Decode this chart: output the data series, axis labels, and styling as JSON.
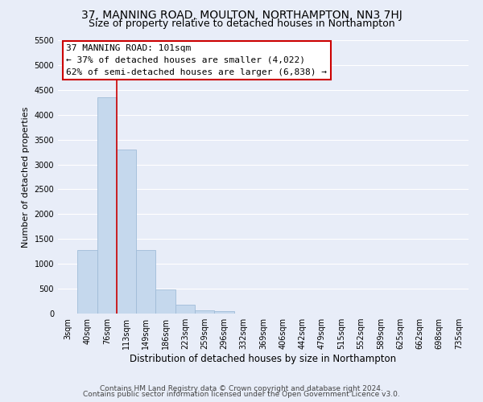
{
  "title": "37, MANNING ROAD, MOULTON, NORTHAMPTON, NN3 7HJ",
  "subtitle": "Size of property relative to detached houses in Northampton",
  "xlabel": "Distribution of detached houses by size in Northampton",
  "ylabel": "Number of detached properties",
  "bar_labels": [
    "3sqm",
    "40sqm",
    "76sqm",
    "113sqm",
    "149sqm",
    "186sqm",
    "223sqm",
    "259sqm",
    "296sqm",
    "332sqm",
    "369sqm",
    "406sqm",
    "442sqm",
    "479sqm",
    "515sqm",
    "552sqm",
    "589sqm",
    "625sqm",
    "662sqm",
    "698sqm",
    "735sqm"
  ],
  "bar_values": [
    0,
    1270,
    4350,
    3300,
    1280,
    480,
    175,
    65,
    55,
    0,
    0,
    0,
    0,
    0,
    0,
    0,
    0,
    0,
    0,
    0,
    0
  ],
  "bar_color": "#c5d8ed",
  "bar_edge_color": "#a0bcd8",
  "vline_x": 2.5,
  "vline_color": "#cc0000",
  "ylim": [
    0,
    5500
  ],
  "yticks": [
    0,
    500,
    1000,
    1500,
    2000,
    2500,
    3000,
    3500,
    4000,
    4500,
    5000,
    5500
  ],
  "annotation_title": "37 MANNING ROAD: 101sqm",
  "annotation_line1": "← 37% of detached houses are smaller (4,022)",
  "annotation_line2": "62% of semi-detached houses are larger (6,838) →",
  "annotation_box_facecolor": "#ffffff",
  "annotation_box_edgecolor": "#cc0000",
  "footer1": "Contains HM Land Registry data © Crown copyright and database right 2024.",
  "footer2": "Contains public sector information licensed under the Open Government Licence v3.0.",
  "bg_color": "#e8edf8",
  "grid_color": "#ffffff",
  "title_fontsize": 10,
  "subtitle_fontsize": 9,
  "xlabel_fontsize": 8.5,
  "ylabel_fontsize": 8,
  "tick_fontsize": 7,
  "ann_fontsize": 8,
  "footer_fontsize": 6.5
}
